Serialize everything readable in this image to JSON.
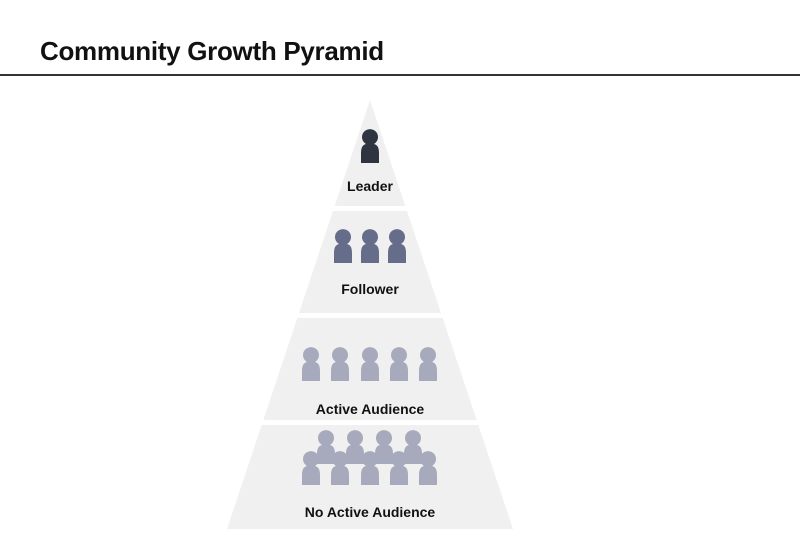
{
  "header": {
    "title": "Community Growth Pyramid"
  },
  "pyramid": {
    "background_color": "#f0f0f0",
    "tiers": [
      {
        "label": "Leader",
        "people": 1,
        "color": "#2f3540"
      },
      {
        "label": "Follower",
        "people": 3,
        "color": "#656d8a"
      },
      {
        "label": "Active Audience",
        "people": 5,
        "color": "#a7a9bd"
      },
      {
        "label": "No Active Audience",
        "people": 9,
        "color": "#a7a9bd"
      }
    ]
  }
}
